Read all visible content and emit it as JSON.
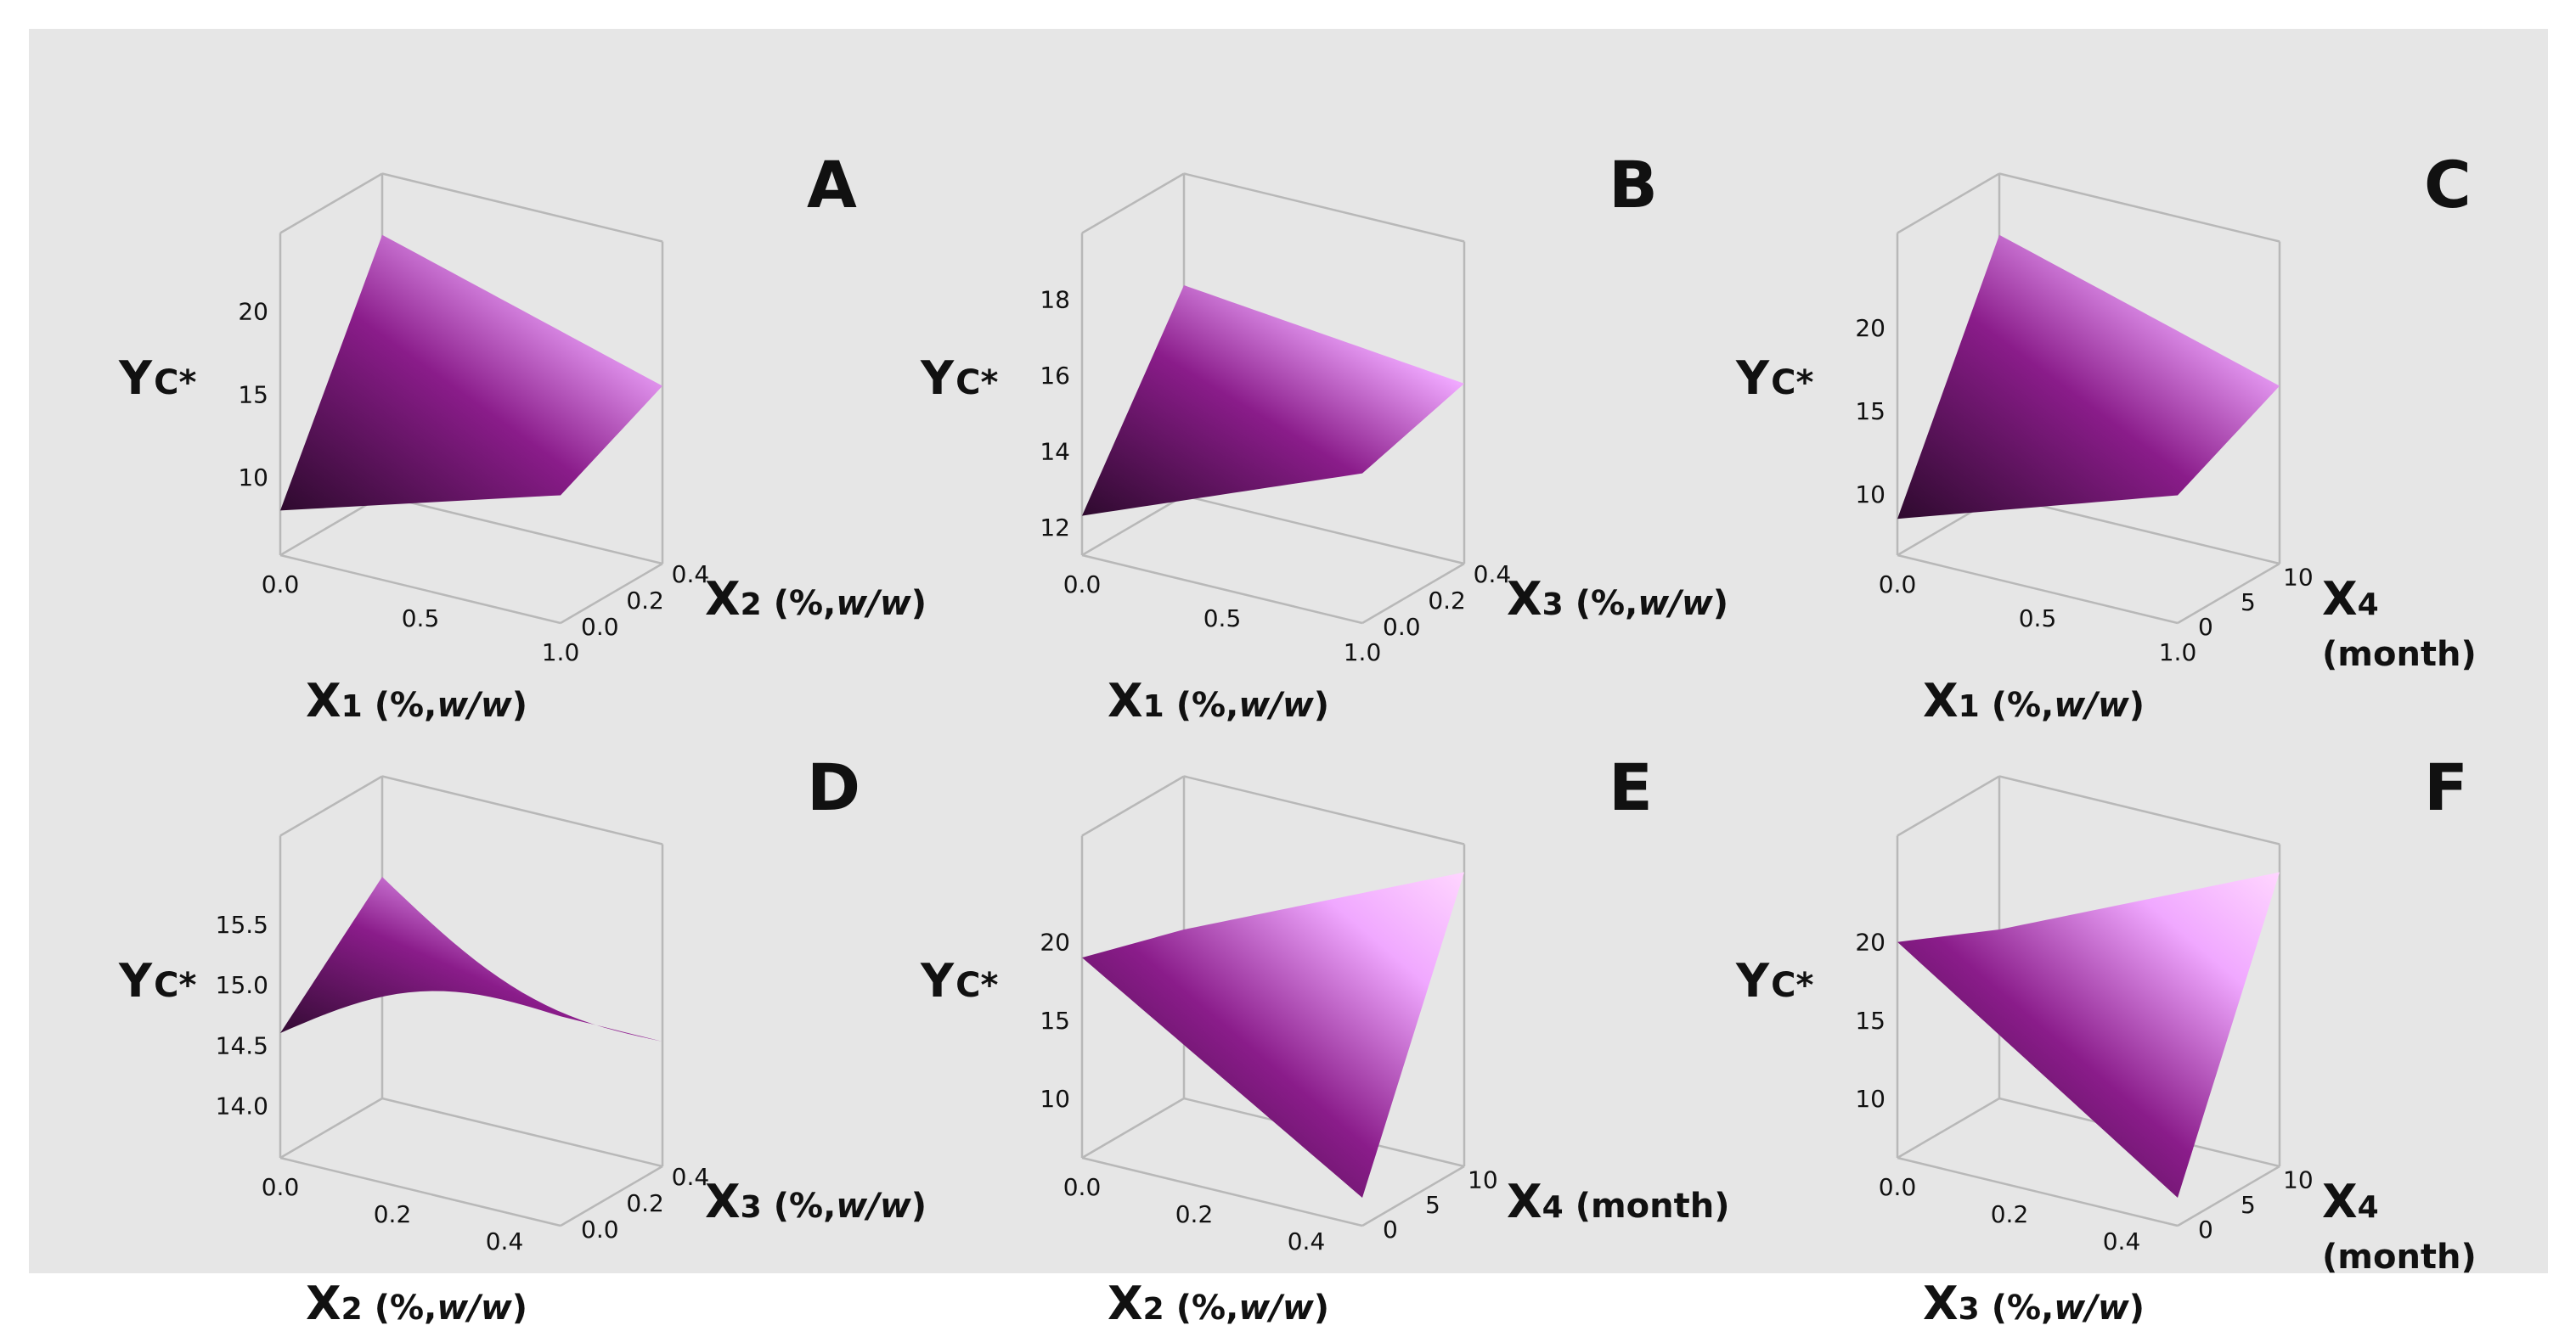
{
  "figure": {
    "background": "#e6e6e6",
    "surface_colors": {
      "dark": "#2e0a2e",
      "mid": "#8a1c8a",
      "light": "#f0a8ff",
      "highlight": "#ffd6ff"
    }
  },
  "chart_data": [
    {
      "panel": "A",
      "type": "surface",
      "zlabel_main": "Y",
      "zlabel_sub": "C*",
      "xlabel_main": "X",
      "xlabel_sub": "1",
      "xlabel_unit": "(%,",
      "xlabel_unit_it": "w/w",
      "xlabel_unit_end": ")",
      "ylabel_main": "X",
      "ylabel_sub": "2",
      "ylabel_unit": "(%,",
      "ylabel_unit_it": "w/w",
      "ylabel_unit_end": ")",
      "ylabel_line2": "",
      "x_ticks": [
        "0.0",
        "0.5",
        "1.0"
      ],
      "y_ticks": [
        "0.0",
        "0.2",
        "0.4"
      ],
      "z_ticks": [
        "10",
        "15",
        "20"
      ],
      "xlim": [
        0,
        1
      ],
      "ylim": [
        0,
        0.45
      ],
      "zlim": [
        7,
        23
      ],
      "surface_corners": {
        "x0y0": 8,
        "x1y0": 13,
        "x0y1": 21,
        "x1y1": 16
      }
    },
    {
      "panel": "B",
      "type": "surface",
      "zlabel_main": "Y",
      "zlabel_sub": "C*",
      "xlabel_main": "X",
      "xlabel_sub": "1",
      "xlabel_unit": "(%,",
      "xlabel_unit_it": "w/w",
      "xlabel_unit_end": ")",
      "ylabel_main": "X",
      "ylabel_sub": "3",
      "ylabel_unit": "(%,",
      "ylabel_unit_it": "w/w",
      "ylabel_unit_end": ")",
      "ylabel_line2": "",
      "x_ticks": [
        "0.0",
        "0.5",
        "1.0"
      ],
      "y_ticks": [
        "0.0",
        "0.2",
        "0.4"
      ],
      "z_ticks": [
        "12",
        "14",
        "16",
        "18"
      ],
      "xlim": [
        0,
        1
      ],
      "ylim": [
        0,
        0.45
      ],
      "zlim": [
        12,
        19
      ],
      "surface_corners": {
        "x0y0": 12.3,
        "x1y0": 15.2,
        "x0y1": 16.8,
        "x1y1": 16.0
      }
    },
    {
      "panel": "C",
      "type": "surface",
      "zlabel_main": "Y",
      "zlabel_sub": "C*",
      "xlabel_main": "X",
      "xlabel_sub": "1",
      "xlabel_unit": "(%,",
      "xlabel_unit_it": "w/w",
      "xlabel_unit_end": ")",
      "ylabel_main": "X",
      "ylabel_sub": "4",
      "ylabel_unit": "",
      "ylabel_unit_it": "",
      "ylabel_unit_end": "",
      "ylabel_line2": "(month)",
      "x_ticks": [
        "0.0",
        "0.5",
        "1.0"
      ],
      "y_ticks": [
        "0",
        "5",
        "10"
      ],
      "z_ticks": [
        "10",
        "15",
        "20"
      ],
      "xlim": [
        0,
        1
      ],
      "ylim": [
        0,
        12
      ],
      "zlim": [
        8,
        24
      ],
      "surface_corners": {
        "x0y0": 8.5,
        "x1y0": 14,
        "x0y1": 22,
        "x1y1": 17
      }
    },
    {
      "panel": "D",
      "type": "surface",
      "zlabel_main": "Y",
      "zlabel_sub": "C*",
      "xlabel_main": "X",
      "xlabel_sub": "2",
      "xlabel_unit": "(%,",
      "xlabel_unit_it": "w/w",
      "xlabel_unit_end": ")",
      "ylabel_main": "X",
      "ylabel_sub": "3",
      "ylabel_unit": "(%,",
      "ylabel_unit_it": "w/w",
      "ylabel_unit_end": ")",
      "ylabel_line2": "",
      "x_ticks": [
        "0.0",
        "0.2",
        "0.4"
      ],
      "y_ticks": [
        "0.0",
        "0.2",
        "0.4"
      ],
      "z_ticks": [
        "14.0",
        "14.5",
        "15.0",
        "15.5"
      ],
      "xlim": [
        0,
        0.5
      ],
      "ylim": [
        0,
        0.45
      ],
      "zlim": [
        13.8,
        16.0
      ],
      "surface_corners": {
        "x0y0": 14.6,
        "x1y0": 15.3,
        "x0y1": 15.4,
        "x1y1": 14.6
      }
    },
    {
      "panel": "E",
      "type": "surface",
      "zlabel_main": "Y",
      "zlabel_sub": "C*",
      "xlabel_main": "X",
      "xlabel_sub": "2",
      "xlabel_unit": "(%,",
      "xlabel_unit_it": "w/w",
      "xlabel_unit_end": ")",
      "ylabel_main": "X",
      "ylabel_sub": "4",
      "ylabel_unit": "(month)",
      "ylabel_unit_it": "",
      "ylabel_unit_end": "",
      "ylabel_line2": "",
      "x_ticks": [
        "0.0",
        "0.2",
        "0.4"
      ],
      "y_ticks": [
        "0",
        "5",
        "10"
      ],
      "z_ticks": [
        "10",
        "15",
        "20"
      ],
      "xlim": [
        0,
        0.5
      ],
      "ylim": [
        0,
        12
      ],
      "zlim": [
        8,
        25
      ],
      "surface_corners": {
        "x0y0": 19,
        "x1y0": 8,
        "x0y1": 17,
        "x1y1": 25
      }
    },
    {
      "panel": "F",
      "type": "surface",
      "zlabel_main": "Y",
      "zlabel_sub": "C*",
      "xlabel_main": "X",
      "xlabel_sub": "3",
      "xlabel_unit": "(%,",
      "xlabel_unit_it": "w/w",
      "xlabel_unit_end": ")",
      "ylabel_main": "X",
      "ylabel_sub": "4",
      "ylabel_unit": "",
      "ylabel_unit_it": "",
      "ylabel_unit_end": "",
      "ylabel_line2": "(month)",
      "x_ticks": [
        "0.0",
        "0.2",
        "0.4"
      ],
      "y_ticks": [
        "0",
        "5",
        "10"
      ],
      "z_ticks": [
        "10",
        "15",
        "20"
      ],
      "xlim": [
        0,
        0.5
      ],
      "ylim": [
        0,
        12
      ],
      "zlim": [
        8,
        25
      ],
      "surface_corners": {
        "x0y0": 20,
        "x1y0": 8,
        "x0y1": 17,
        "x1y1": 25
      }
    }
  ]
}
